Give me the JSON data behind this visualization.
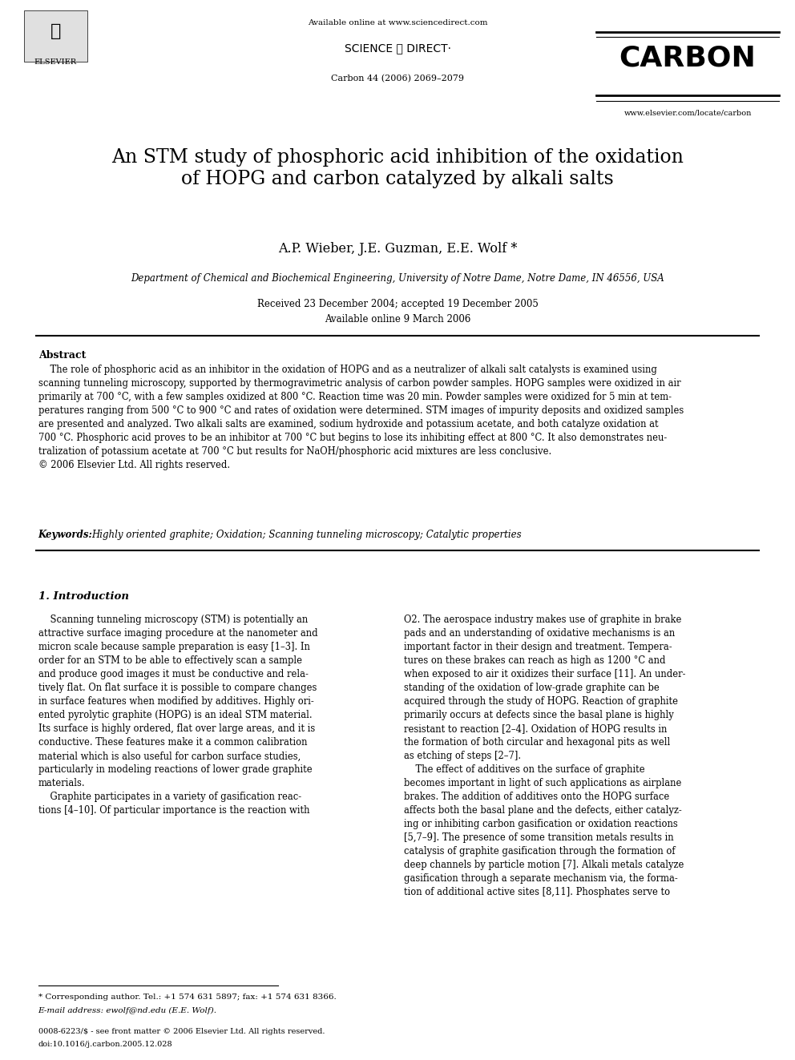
{
  "background_color": "#ffffff",
  "page_width": 9.92,
  "page_height": 13.23,
  "header": {
    "available_online_text": "Available online at www.sciencedirect.com",
    "sciencedirect_text": "SCIENCE ⓐ DIRECT·",
    "journal_issue": "Carbon 44 (2006) 2069–2079",
    "journal_name": "CARBON",
    "journal_url": "www.elsevier.com/locate/carbon",
    "elsevier_text": "ELSEVIER"
  },
  "title": "An STM study of phosphoric acid inhibition of the oxidation\nof HOPG and carbon catalyzed by alkali salts",
  "authors": "A.P. Wieber, J.E. Guzman, E.E. Wolf *",
  "affiliation": "Department of Chemical and Biochemical Engineering, University of Notre Dame, Notre Dame, IN 46556, USA",
  "received": "Received 23 December 2004; accepted 19 December 2005",
  "available_online": "Available online 9 March 2006",
  "abstract_heading": "Abstract",
  "abstract_text": "The role of phosphoric acid as an inhibitor in the oxidation of HOPG and as a neutralizer of alkali salt catalysts is examined using scanning tunneling microscopy, supported by thermogravimetric analysis of carbon powder samples. HOPG samples were oxidized in air primarily at 700 °C, with a few samples oxidized at 800 °C. Reaction time was 20 min. Powder samples were oxidized for 5 min at temperatures ranging from 500 °C to 900 °C and rates of oxidation were determined. STM images of impurity deposits and oxidized samples are presented and analyzed. Two alkali salts are examined, sodium hydroxide and potassium acetate, and both catalyze oxidation at 700 °C. Phosphoric acid proves to be an inhibitor at 700 °C but begins to lose its inhibiting effect at 800 °C. It also demonstrates neutralization of potassium acetate at 700 °C but results for NaOH/phosphoric acid mixtures are less conclusive.\n© 2006 Elsevier Ltd. All rights reserved.",
  "keywords_label": "Keywords:",
  "keywords_text": "Highly oriented graphite; Oxidation; Scanning tunneling microscopy; Catalytic properties",
  "section1_heading": "1. Introduction",
  "section1_col1_text": "Scanning tunneling microscopy (STM) is potentially an attractive surface imaging procedure at the nanometer and micron scale because sample preparation is easy [1–3]. In order for an STM to be able to effectively scan a sample and produce good images it must be conductive and relatively flat. On flat surface it is possible to compare changes in surface features when modified by additives. Highly oriented pyrolytic graphite (HOPG) is an ideal STM material. Its surface is highly ordered, flat over large areas, and it is conductive. These features make it a common calibration material which is also useful for carbon surface studies, particularly in modeling reactions of lower grade graphite materials.\n\nGraphite participates in a variety of gasification reactions [4–10]. Of particular importance is the reaction with",
  "section1_col2_text": "O2. The aerospace industry makes use of graphite in brake pads and an understanding of oxidative mechanisms is an important factor in their design and treatment. Temperatures on these brakes can reach as high as 1200 °C and when exposed to air it oxidizes their surface [11]. An understanding of the oxidation of low-grade graphite can be acquired through the study of HOPG. Reaction of graphite primarily occurs at defects since the basal plane is highly resistant to reaction [2–4]. Oxidation of HOPG results in the formation of both circular and hexagonal pits as well as etching of steps [2–7].\n\nThe effect of additives on the surface of graphite becomes important in light of such applications as airplane brakes. The addition of additives onto the HOPG surface affects both the basal plane and the defects, either catalyzing or inhibiting carbon gasification or oxidation reactions [5,7–9]. The presence of some transition metals results in catalysis of graphite gasification through the formation of deep channels by particle motion [7]. Alkali metals catalyze gasification through a separate mechanism via, the formation of additional active sites [8,11]. Phosphates serve to",
  "footnote_star": "* Corresponding author. Tel.: +1 574 631 5897; fax: +1 574 631 8366.",
  "footnote_email": "E-mail address: ewolf@nd.edu (E.E. Wolf).",
  "footer_issn": "0008-6223/$ - see front matter © 2006 Elsevier Ltd. All rights reserved.",
  "footer_doi": "doi:10.1016/j.carbon.2005.12.028"
}
